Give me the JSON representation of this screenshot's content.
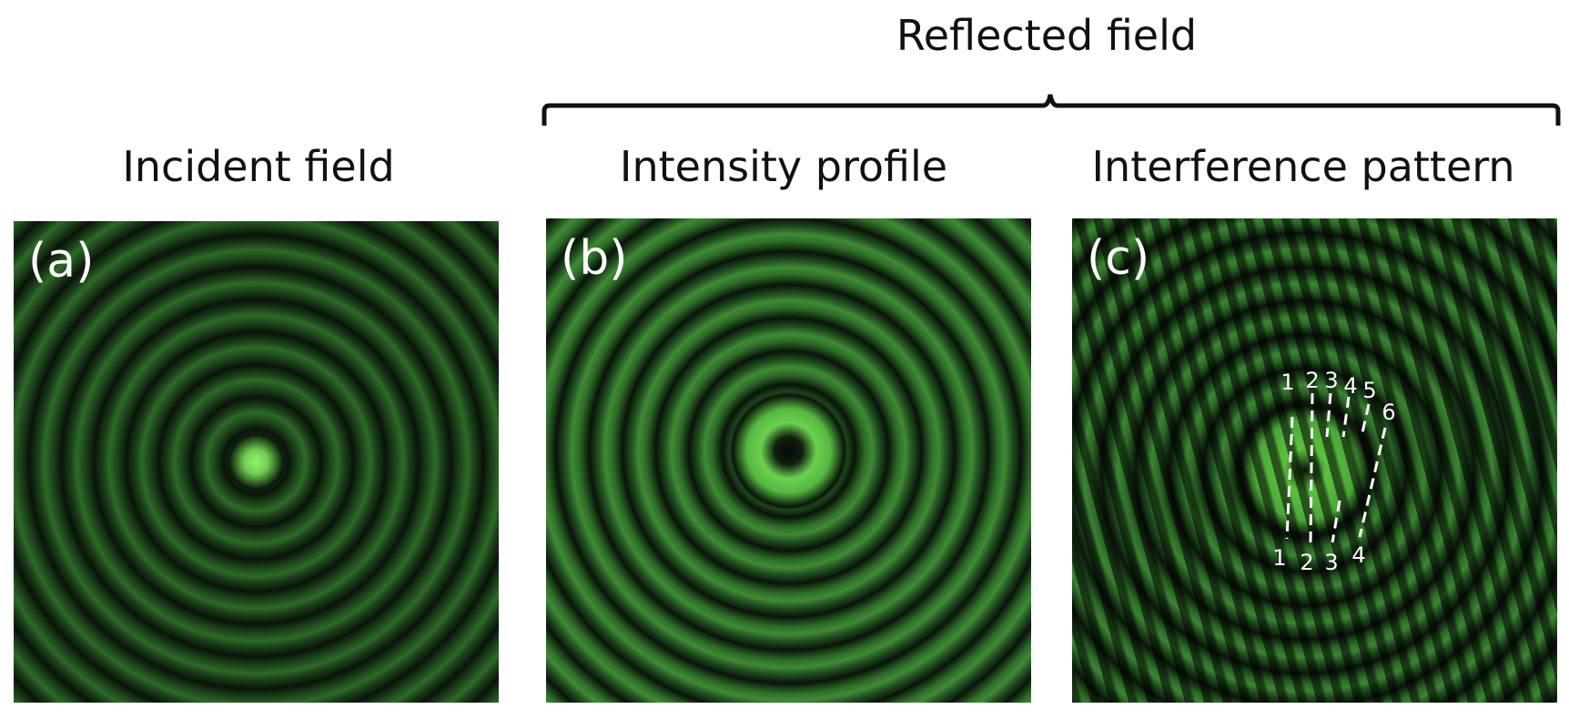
{
  "header": {
    "title": "Reflected field"
  },
  "panels": [
    {
      "heading": "Incident field",
      "label": "(a)"
    },
    {
      "heading": "Intensity profile",
      "label": "(b)"
    },
    {
      "heading": "Interference pattern",
      "label": "(c)"
    }
  ],
  "fringe_labels": {
    "top": [
      "1",
      "2",
      "3",
      "4",
      "5",
      "6"
    ],
    "bottom": [
      "1",
      "2",
      "3",
      "4"
    ]
  }
}
